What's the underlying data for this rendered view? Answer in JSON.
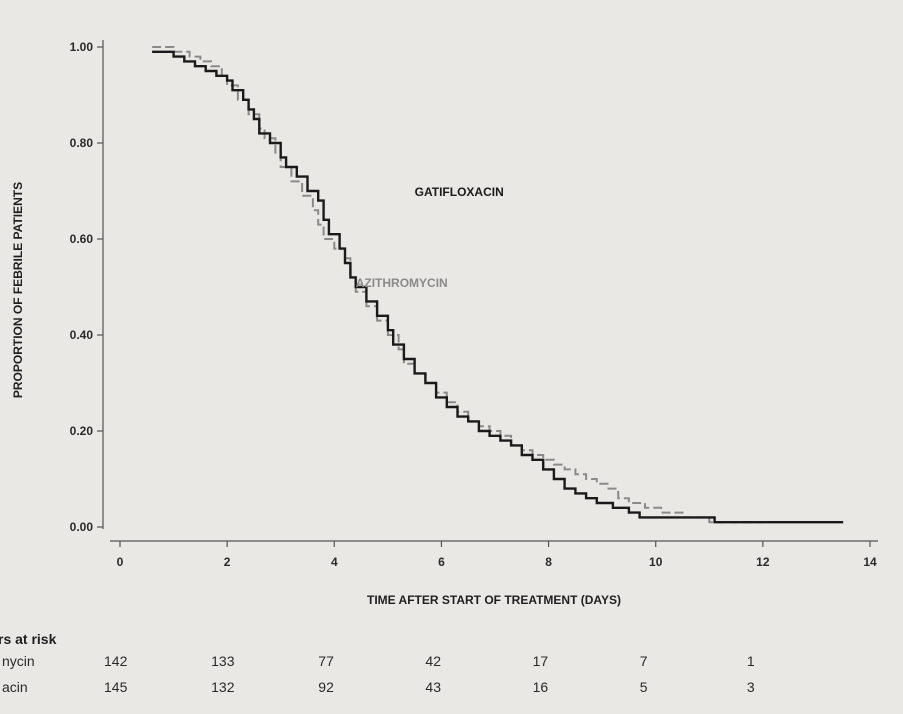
{
  "chart_data": {
    "type": "line",
    "xlabel": "TIME AFTER START OF TREATMENT (DAYS)",
    "ylabel": "PROPORTION OF FEBRILE PATIENTS",
    "xlim": [
      0,
      14
    ],
    "ylim": [
      0,
      1
    ],
    "x_ticks": [
      "0",
      "2",
      "4",
      "6",
      "8",
      "10",
      "12",
      "14"
    ],
    "x_tick_values": [
      0,
      2,
      4,
      6,
      8,
      10,
      12,
      14
    ],
    "y_ticks": [
      "0.00",
      "0.20",
      "0.40",
      "0.60",
      "0.80",
      "1.00"
    ],
    "y_tick_values": [
      0,
      0.2,
      0.4,
      0.6,
      0.8,
      1.0
    ],
    "grid": false,
    "legend": "none",
    "series": [
      {
        "name": "GATIFLOXACIN",
        "color": "#1a1a1a",
        "style": "solid step",
        "x": [
          0.6,
          1.0,
          1.2,
          1.4,
          1.6,
          1.8,
          2.0,
          2.1,
          2.3,
          2.4,
          2.5,
          2.6,
          2.8,
          3.0,
          3.1,
          3.3,
          3.5,
          3.7,
          3.8,
          3.9,
          4.1,
          4.2,
          4.3,
          4.4,
          4.6,
          4.8,
          5.0,
          5.1,
          5.3,
          5.5,
          5.7,
          5.9,
          6.1,
          6.3,
          6.5,
          6.7,
          6.9,
          7.1,
          7.3,
          7.5,
          7.7,
          7.9,
          8.1,
          8.3,
          8.5,
          8.7,
          8.9,
          9.2,
          9.5,
          9.7,
          10.3,
          11.1,
          11.6,
          12.6,
          13.5
        ],
        "y": [
          0.99,
          0.98,
          0.97,
          0.96,
          0.95,
          0.94,
          0.93,
          0.91,
          0.89,
          0.87,
          0.85,
          0.82,
          0.8,
          0.77,
          0.75,
          0.73,
          0.7,
          0.68,
          0.64,
          0.61,
          0.58,
          0.55,
          0.52,
          0.5,
          0.47,
          0.44,
          0.41,
          0.38,
          0.35,
          0.32,
          0.3,
          0.27,
          0.25,
          0.23,
          0.22,
          0.2,
          0.19,
          0.18,
          0.17,
          0.15,
          0.14,
          0.12,
          0.1,
          0.08,
          0.07,
          0.06,
          0.05,
          0.04,
          0.03,
          0.02,
          0.02,
          0.01,
          0.01,
          0.01,
          0.01
        ]
      },
      {
        "name": "AZITHROMYCIN",
        "color": "#8a8a8a",
        "style": "dashed step",
        "x": [
          0.6,
          1.0,
          1.3,
          1.5,
          1.7,
          1.9,
          2.0,
          2.2,
          2.4,
          2.6,
          2.7,
          2.9,
          3.0,
          3.2,
          3.4,
          3.6,
          3.7,
          3.8,
          4.0,
          4.2,
          4.3,
          4.4,
          4.6,
          4.8,
          5.0,
          5.2,
          5.3,
          5.5,
          5.7,
          5.9,
          6.1,
          6.3,
          6.5,
          6.7,
          6.9,
          7.1,
          7.3,
          7.5,
          7.7,
          7.9,
          8.1,
          8.3,
          8.5,
          8.7,
          8.9,
          9.1,
          9.3,
          9.5,
          9.8,
          10.1,
          10.5,
          11.0,
          11.5,
          12.0
        ],
        "y": [
          1.0,
          0.99,
          0.98,
          0.97,
          0.96,
          0.94,
          0.92,
          0.89,
          0.86,
          0.83,
          0.81,
          0.78,
          0.75,
          0.72,
          0.69,
          0.66,
          0.63,
          0.6,
          0.58,
          0.56,
          0.52,
          0.49,
          0.46,
          0.43,
          0.4,
          0.37,
          0.34,
          0.32,
          0.3,
          0.28,
          0.26,
          0.24,
          0.22,
          0.21,
          0.2,
          0.19,
          0.17,
          0.16,
          0.15,
          0.14,
          0.13,
          0.12,
          0.11,
          0.1,
          0.09,
          0.08,
          0.06,
          0.05,
          0.04,
          0.03,
          0.02,
          0.01,
          0.01,
          0.01
        ]
      }
    ],
    "annotations": [
      {
        "text": "GATIFLOXACIN",
        "x": 5.5,
        "y": 0.69,
        "color": "#1a1a1a"
      },
      {
        "text": "AZITHROMYCIN",
        "x": 4.4,
        "y": 0.5,
        "color": "#8a8a8a"
      }
    ],
    "risk_table": {
      "title": "rs at risk",
      "times": [
        0,
        2,
        4,
        6,
        8,
        10,
        12
      ],
      "rows": [
        {
          "label": "nycin",
          "values": [
            "142",
            "133",
            "77",
            "42",
            "17",
            "7",
            "1"
          ]
        },
        {
          "label": "acin",
          "values": [
            "145",
            "132",
            "92",
            "43",
            "16",
            "5",
            "3"
          ]
        }
      ]
    }
  }
}
